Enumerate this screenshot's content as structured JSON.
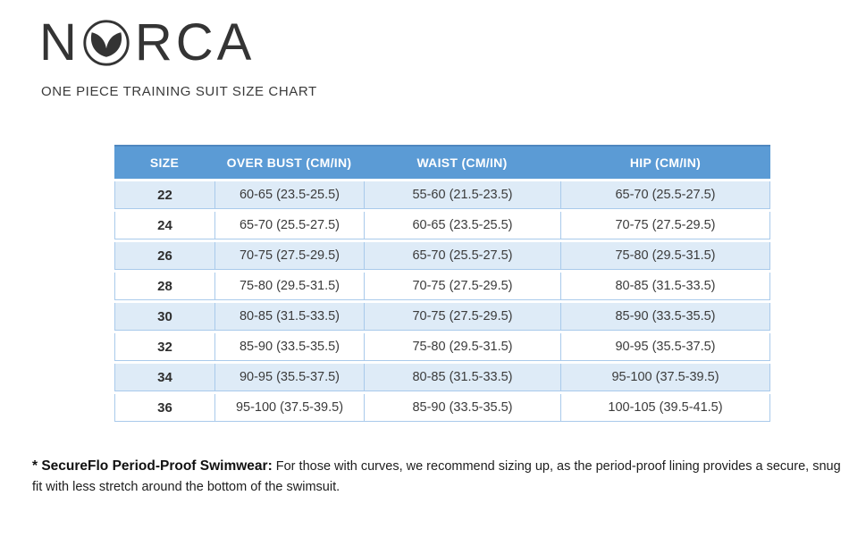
{
  "brand": {
    "logo_prefix": "N",
    "logo_suffix": "RCA",
    "logo_icon": "mermaid-tail-icon"
  },
  "subtitle": "ONE PIECE TRAINING SUIT SIZE CHART",
  "table": {
    "headers": [
      "SIZE",
      "OVER BUST (CM/IN)",
      "WAIST (CM/IN)",
      "HIP (CM/IN)"
    ],
    "rows": [
      [
        "22",
        "60-65 (23.5-25.5)",
        "55-60 (21.5-23.5)",
        "65-70 (25.5-27.5)"
      ],
      [
        "24",
        "65-70 (25.5-27.5)",
        "60-65 (23.5-25.5)",
        "70-75 (27.5-29.5)"
      ],
      [
        "26",
        "70-75 (27.5-29.5)",
        "65-70 (25.5-27.5)",
        "75-80 (29.5-31.5)"
      ],
      [
        "28",
        "75-80 (29.5-31.5)",
        "70-75 (27.5-29.5)",
        "80-85 (31.5-33.5)"
      ],
      [
        "30",
        "80-85 (31.5-33.5)",
        "70-75 (27.5-29.5)",
        "85-90 (33.5-35.5)"
      ],
      [
        "32",
        "85-90 (33.5-35.5)",
        "75-80 (29.5-31.5)",
        "90-95 (35.5-37.5)"
      ],
      [
        "34",
        "90-95 (35.5-37.5)",
        "80-85 (31.5-33.5)",
        "95-100 (37.5-39.5)"
      ],
      [
        "36",
        "95-100 (37.5-39.5)",
        "85-90 (33.5-35.5)",
        "100-105 (39.5-41.5)"
      ]
    ]
  },
  "footnote": {
    "lead": "* SecureFlo Period-Proof Swimwear:",
    "body": " For those with curves, we recommend sizing up, as the period-proof lining provides a secure, snug fit with less stretch around the bottom of the swimsuit."
  },
  "colors": {
    "header_bg": "#5B9BD5",
    "header_text": "#FFFFFF",
    "band_bg": "#DEEBF7",
    "grid_border": "#A9CAEB",
    "logo_color": "#343434"
  }
}
